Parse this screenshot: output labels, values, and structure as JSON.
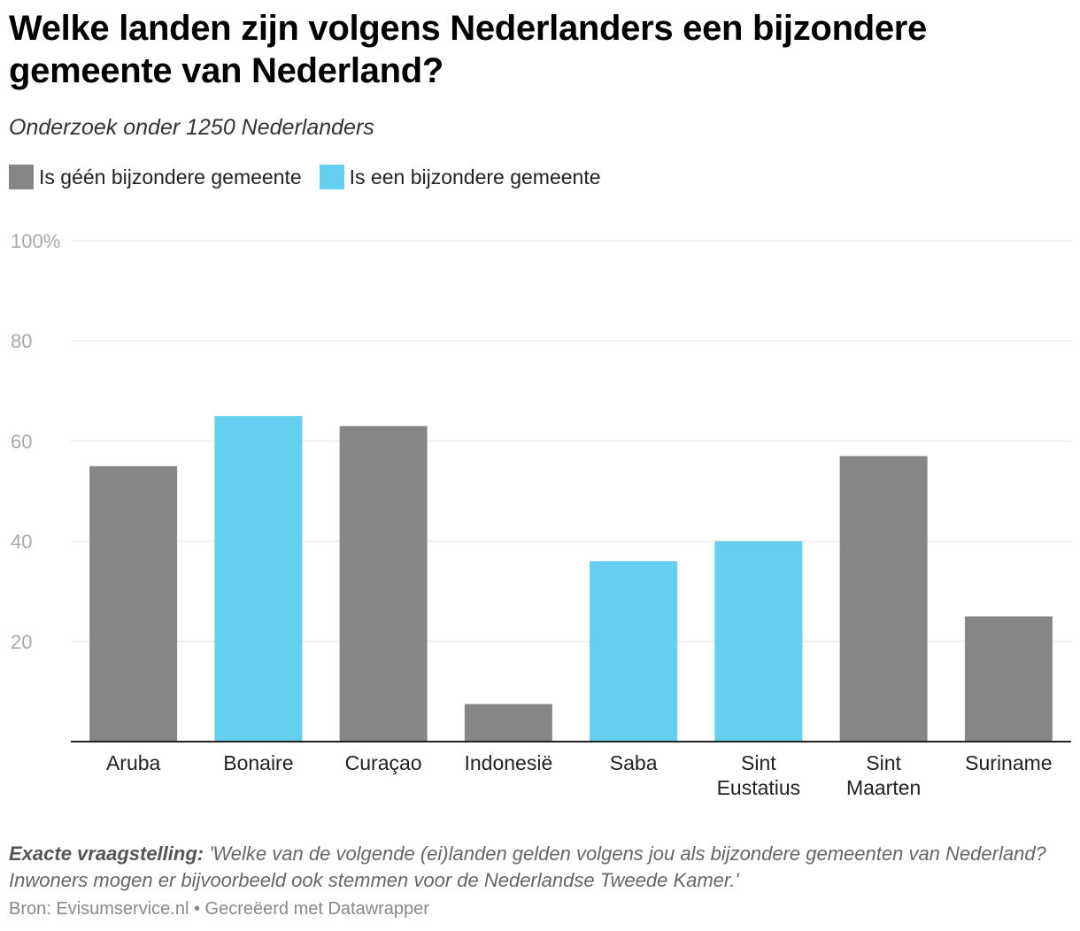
{
  "header": {
    "title": "Welke landen zijn volgens Nederlanders een bijzondere gemeente van Nederland?",
    "subtitle": "Onderzoek onder 1250 Nederlanders"
  },
  "legend": [
    {
      "label": "Is géén bijzondere gemeente",
      "color": "#868686"
    },
    {
      "label": "Is een bijzondere gemeente",
      "color": "#64cfee"
    }
  ],
  "footer": {
    "note_label": "Exacte vraagstelling:",
    "note_text": "'Welke van de volgende (ei)landen gelden volgens jou als bijzondere gemeenten van Nederland? Inwoners mogen er bijvoorbeeld ook stemmen voor de Nederlandse Tweede Kamer.'",
    "source": "Bron: Evisumservice.nl • Gecreëerd met Datawrapper"
  },
  "chart_data": {
    "type": "bar",
    "categories": [
      "Aruba",
      "Bonaire",
      "Curaçao",
      "Indonesië",
      "Saba",
      "Sint Eustatius",
      "Sint Maarten",
      "Suriname"
    ],
    "values": [
      55,
      65,
      63,
      7.5,
      36,
      40,
      57,
      25
    ],
    "bijzondere_gemeente": [
      false,
      true,
      false,
      false,
      true,
      true,
      false,
      false
    ],
    "ylim": [
      0,
      100
    ],
    "yticks": [
      20,
      40,
      60,
      80,
      100
    ],
    "ytick_labels": [
      "20",
      "40",
      "60",
      "80",
      "100%"
    ],
    "grid": true,
    "legend_position": "top-left",
    "colors": {
      "geen": "#868686",
      "wel": "#64cfee"
    }
  }
}
